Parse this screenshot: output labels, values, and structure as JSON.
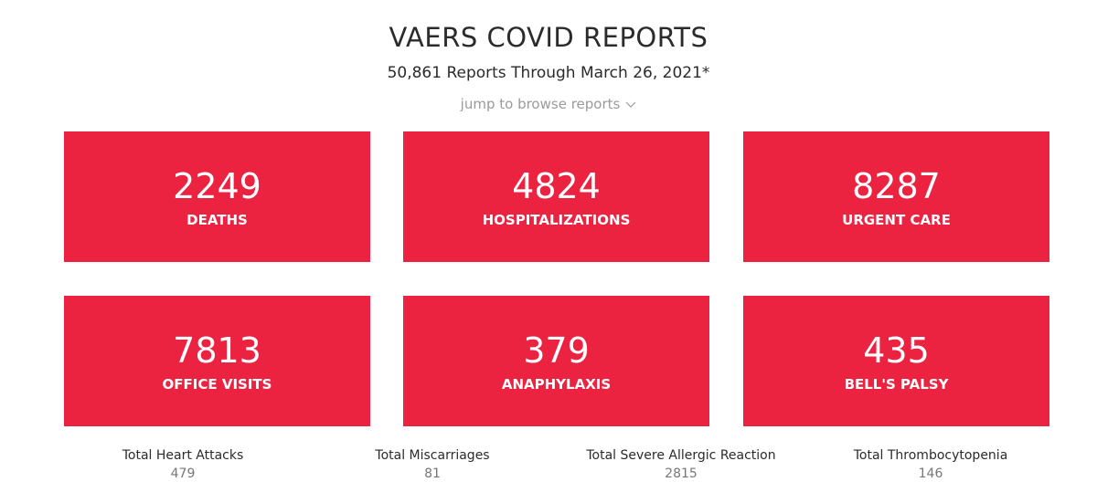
{
  "header": {
    "title": "VAERS COVID REPORTS",
    "subtitle": "50,861 Reports Through March 26, 2021*",
    "jump_link": "jump to browse reports"
  },
  "cards": [
    {
      "value": 2249,
      "label": "DEATHS"
    },
    {
      "value": 4824,
      "label": "HOSPITALIZATIONS"
    },
    {
      "value": 8287,
      "label": "URGENT CARE"
    },
    {
      "value": 7813,
      "label": "OFFICE VISITS"
    },
    {
      "value": 379,
      "label": "ANAPHYLAXIS"
    },
    {
      "value": 435,
      "label": "BELL'S PALSY"
    }
  ],
  "stats": [
    {
      "label": "Total Heart Attacks",
      "value": 479
    },
    {
      "label": "Total Miscarriages",
      "value": 81
    },
    {
      "label": "Total Severe Allergic Reaction",
      "value": 2815
    },
    {
      "label": "Total Thrombocytopenia",
      "value": 146
    }
  ]
}
